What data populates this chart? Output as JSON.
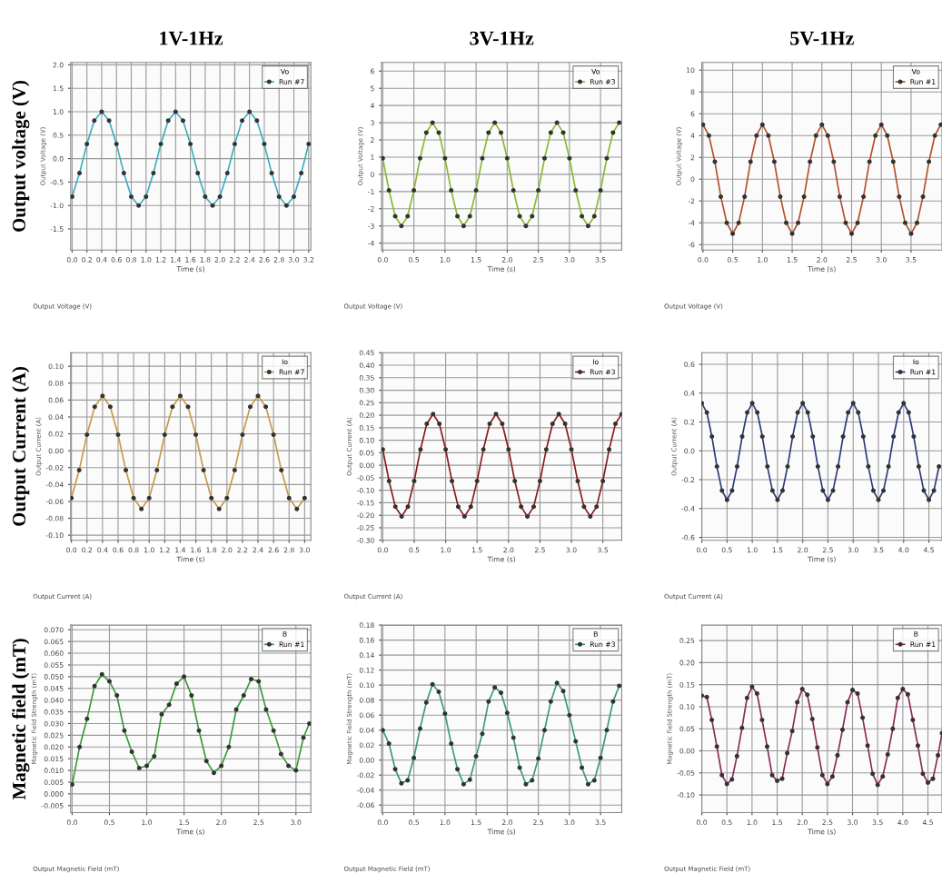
{
  "chart_data": [
    {
      "type": "line",
      "title": "1V-1Hz",
      "xlabel": "Time (s)",
      "ylabel": "Output Voltage (V)",
      "legend_title": "Vo",
      "legend": "top right",
      "grid": true,
      "marker": "circle",
      "line_style": "solid",
      "annotations": [
        "Output Voltage (V)",
        "Output voltage (V)"
      ],
      "xlim": [
        -0.02,
        3.23
      ],
      "ylim": [
        -1.95,
        2.05
      ],
      "xticks": [
        {
          "value": 0,
          "label": "0.0"
        },
        0.2,
        0.4,
        0.6,
        0.8,
        {
          "value": 1,
          "label": "1.0"
        },
        1.2,
        1.4,
        1.6,
        1.8,
        {
          "value": 2,
          "label": "2.0"
        },
        2.2,
        2.4,
        2.6,
        2.8,
        {
          "value": 3,
          "label": "3.0"
        },
        3.2
      ],
      "yticks": [
        -1.5,
        {
          "value": -1,
          "label": "-1.0"
        },
        -0.5,
        {
          "value": 0,
          "label": "0.0"
        },
        0.5,
        {
          "value": 1,
          "label": "1.0"
        },
        1.5,
        {
          "value": 2,
          "label": "2.0"
        }
      ],
      "series": [
        {
          "name": "Run #7",
          "color": "#3aafc0",
          "x": [
            0.0,
            0.1,
            0.2,
            0.3,
            0.4,
            0.5,
            0.6,
            0.7,
            0.8,
            0.9,
            1.0,
            1.1,
            1.2,
            1.3,
            1.4,
            1.5,
            1.6,
            1.7,
            1.8,
            1.9,
            2.0,
            2.1,
            2.2,
            2.3,
            2.4,
            2.5,
            2.6,
            2.7,
            2.8,
            2.9,
            3.0,
            3.1,
            3.2
          ],
          "values": [
            -0.81,
            -0.31,
            0.31,
            0.81,
            1.0,
            0.81,
            0.31,
            -0.31,
            -0.81,
            -1.0,
            -0.81,
            -0.31,
            0.31,
            0.81,
            1.0,
            0.81,
            0.31,
            -0.31,
            -0.81,
            -1.0,
            -0.81,
            -0.31,
            0.31,
            0.81,
            1.0,
            0.81,
            0.31,
            -0.31,
            -0.81,
            -1.0,
            -0.81,
            -0.31,
            0.31
          ]
        }
      ]
    },
    {
      "type": "line",
      "title": "3V-1Hz",
      "xlabel": "Time (s)",
      "ylabel": "Output Voltage (V)",
      "legend_title": "Vo",
      "legend": "top right",
      "grid": true,
      "marker": "circle",
      "line_style": "solid",
      "annotations": [
        "Output Voltage (V)"
      ],
      "xlim": [
        -0.02,
        3.84
      ],
      "ylim": [
        -4.4,
        6.5
      ],
      "xticks": [
        {
          "value": 0,
          "label": "0.0"
        },
        0.5,
        {
          "value": 1,
          "label": "1.0"
        },
        1.5,
        {
          "value": 2,
          "label": "2.0"
        },
        2.5,
        {
          "value": 3,
          "label": "3.0"
        },
        3.5
      ],
      "yticks": [
        -4,
        -3,
        -2,
        -1,
        0,
        1,
        2,
        3,
        4,
        5,
        6
      ],
      "series": [
        {
          "name": "Run #3",
          "color": "#8ab832",
          "x": [
            0.0,
            0.1,
            0.2,
            0.3,
            0.4,
            0.5,
            0.6,
            0.7,
            0.8,
            0.9,
            1.0,
            1.1,
            1.2,
            1.3,
            1.4,
            1.5,
            1.6,
            1.7,
            1.8,
            1.9,
            2.0,
            2.1,
            2.2,
            2.3,
            2.4,
            2.5,
            2.6,
            2.7,
            2.8,
            2.9,
            3.0,
            3.1,
            3.2,
            3.3,
            3.4,
            3.5,
            3.6,
            3.7,
            3.8
          ],
          "values": [
            0.93,
            -0.93,
            -2.43,
            -3,
            -2.43,
            -0.93,
            0.93,
            2.43,
            3,
            2.43,
            0.93,
            -0.93,
            -2.43,
            -3,
            -2.43,
            -0.93,
            0.93,
            2.43,
            3,
            2.43,
            0.93,
            -0.93,
            -2.43,
            -3,
            -2.43,
            -0.93,
            0.93,
            2.43,
            3,
            2.43,
            0.93,
            -0.93,
            -2.43,
            -3,
            -2.43,
            -0.93,
            0.93,
            2.43,
            3
          ]
        }
      ]
    },
    {
      "type": "line",
      "title": "5V-1Hz",
      "xlabel": "Time (s)",
      "ylabel": "Output Voltage (V)",
      "legend_title": "Vo",
      "legend": "top right",
      "grid": true,
      "marker": "circle",
      "line_style": "solid",
      "annotations": [
        "Output Voltage (V)"
      ],
      "xlim": [
        -0.02,
        4.02
      ],
      "ylim": [
        -6.5,
        10.7
      ],
      "xticks": [
        {
          "value": 0,
          "label": "0.0"
        },
        0.5,
        {
          "value": 1,
          "label": "1.0"
        },
        1.5,
        {
          "value": 2,
          "label": "2.0"
        },
        2.5,
        {
          "value": 3,
          "label": "3.0"
        },
        3.5
      ],
      "yticks": [
        -6,
        -4,
        -2,
        0,
        2,
        4,
        6,
        8,
        10
      ],
      "series": [
        {
          "name": "Run #1",
          "color": "#b5502a",
          "x": [
            0.0,
            0.1,
            0.2,
            0.3,
            0.4,
            0.5,
            0.6,
            0.7,
            0.8,
            0.9,
            1.0,
            1.1,
            1.2,
            1.3,
            1.4,
            1.5,
            1.6,
            1.7,
            1.8,
            1.9,
            2.0,
            2.1,
            2.2,
            2.3,
            2.4,
            2.5,
            2.6,
            2.7,
            2.8,
            2.9,
            3.0,
            3.1,
            3.2,
            3.3,
            3.4,
            3.5,
            3.6,
            3.7,
            3.8,
            3.9,
            4.0
          ],
          "values": [
            5,
            4,
            1.6,
            -1.6,
            -4,
            -5,
            -4,
            -1.6,
            1.6,
            4,
            5,
            4,
            1.6,
            -1.6,
            -4,
            -5,
            -4,
            -1.6,
            1.6,
            4,
            5,
            4,
            1.6,
            -1.6,
            -4,
            -5,
            -4,
            -1.6,
            1.6,
            4,
            5,
            4,
            1.6,
            -1.6,
            -4,
            -5,
            -4,
            -1.6,
            1.6,
            4,
            5
          ]
        }
      ]
    },
    {
      "type": "line",
      "xlabel": "Time (s)",
      "ylabel": "Output Current (A)",
      "legend_title": "Io",
      "legend": "top right",
      "grid": true,
      "marker": "circle",
      "line_style": "solid",
      "annotations": [
        "Output Current (A)",
        "Output Current (A)"
      ],
      "xlim": [
        -0.01,
        3.08
      ],
      "ylim": [
        -0.106,
        0.116
      ],
      "xticks": [
        {
          "value": 0,
          "label": "0.0"
        },
        0.2,
        0.4,
        0.6,
        0.8,
        {
          "value": 1,
          "label": "1.0"
        },
        1.2,
        1.4,
        1.6,
        1.8,
        {
          "value": 2,
          "label": "2.0"
        },
        2.2,
        2.4,
        2.6,
        2.8,
        {
          "value": 3,
          "label": "3.0"
        }
      ],
      "yticks": [
        {
          "value": -0.1,
          "label": "-0.10"
        },
        {
          "value": -0.08,
          "label": "-0.08"
        },
        {
          "value": -0.06,
          "label": "-0.06"
        },
        {
          "value": -0.04,
          "label": "-0.04"
        },
        {
          "value": -0.02,
          "label": "-0.02"
        },
        {
          "value": 0.0,
          "label": "0.00"
        },
        {
          "value": 0.02,
          "label": "0.02"
        },
        {
          "value": 0.04,
          "label": "0.04"
        },
        {
          "value": 0.06,
          "label": "0.06"
        },
        {
          "value": 0.08,
          "label": "0.08"
        },
        {
          "value": 0.1,
          "label": "0.10"
        }
      ],
      "series": [
        {
          "name": "Run #7",
          "color": "#c79a4a",
          "x": [
            0.0,
            0.1,
            0.2,
            0.3,
            0.4,
            0.5,
            0.6,
            0.7,
            0.8,
            0.9,
            1.0,
            1.1,
            1.2,
            1.3,
            1.4,
            1.5,
            1.6,
            1.7,
            1.8,
            1.9,
            2.0,
            2.1,
            2.2,
            2.3,
            2.4,
            2.5,
            2.6,
            2.7,
            2.8,
            2.9,
            3.0
          ],
          "values": [
            -0.056,
            -0.023,
            0.019,
            0.052,
            0.065,
            0.052,
            0.019,
            -0.023,
            -0.056,
            -0.069,
            -0.056,
            -0.023,
            0.019,
            0.052,
            0.065,
            0.052,
            0.019,
            -0.023,
            -0.056,
            -0.069,
            -0.056,
            -0.023,
            0.019,
            0.052,
            0.065,
            0.052,
            0.019,
            -0.023,
            -0.056,
            -0.069,
            -0.056
          ]
        }
      ]
    },
    {
      "type": "line",
      "xlabel": "Time (s)",
      "ylabel": "Output Current (A)",
      "legend_title": "Io",
      "legend": "top right",
      "grid": true,
      "marker": "circle",
      "line_style": "solid",
      "annotations": [
        "Output Current (A)"
      ],
      "xlim": [
        -0.02,
        3.8
      ],
      "ylim": [
        -0.3,
        0.45
      ],
      "xticks": [
        {
          "value": 0,
          "label": "0.0"
        },
        0.5,
        {
          "value": 1,
          "label": "1.0"
        },
        1.5,
        {
          "value": 2,
          "label": "2.0"
        },
        2.5,
        {
          "value": 3,
          "label": "3.0"
        },
        3.5
      ],
      "yticks": [
        {
          "value": -0.3,
          "label": "-0.30"
        },
        -0.25,
        {
          "value": -0.2,
          "label": "-0.20"
        },
        -0.15,
        {
          "value": -0.1,
          "label": "-0.10"
        },
        -0.05,
        {
          "value": 0.0,
          "label": "0.00"
        },
        0.05,
        {
          "value": 0.1,
          "label": "0.10"
        },
        0.15,
        {
          "value": 0.2,
          "label": "0.20"
        },
        0.25,
        {
          "value": 0.3,
          "label": "0.30"
        },
        0.35,
        {
          "value": 0.4,
          "label": "0.40"
        },
        0.45
      ],
      "series": [
        {
          "name": "Run #3",
          "color": "#8b1a1a",
          "x": [
            0.0,
            0.1,
            0.2,
            0.3,
            0.4,
            0.5,
            0.6,
            0.7,
            0.8,
            0.9,
            1.0,
            1.1,
            1.2,
            1.3,
            1.4,
            1.5,
            1.6,
            1.7,
            1.8,
            1.9,
            2.0,
            2.1,
            2.2,
            2.3,
            2.4,
            2.5,
            2.6,
            2.7,
            2.8,
            2.9,
            3.0,
            3.1,
            3.2,
            3.3,
            3.4,
            3.5,
            3.6,
            3.7,
            3.8
          ],
          "values": [
            0.063,
            -0.063,
            -0.166,
            -0.205,
            -0.166,
            -0.063,
            0.063,
            0.166,
            0.205,
            0.166,
            0.063,
            -0.063,
            -0.166,
            -0.205,
            -0.166,
            -0.063,
            0.063,
            0.166,
            0.205,
            0.166,
            0.063,
            -0.063,
            -0.166,
            -0.205,
            -0.166,
            -0.063,
            0.063,
            0.166,
            0.205,
            0.166,
            0.063,
            -0.063,
            -0.166,
            -0.205,
            -0.166,
            -0.063,
            0.063,
            0.166,
            0.205
          ]
        }
      ]
    },
    {
      "type": "line",
      "xlabel": "Time (s)",
      "ylabel": "Output Current (A)",
      "legend_title": "Io",
      "legend": "top right",
      "grid": true,
      "marker": "circle",
      "line_style": "solid",
      "annotations": [
        "Output Current (A)"
      ],
      "xlim": [
        0.0,
        4.76
      ],
      "ylim": [
        -0.62,
        0.68
      ],
      "xticks": [
        {
          "value": 0,
          "label": "0.0"
        },
        0.5,
        {
          "value": 1,
          "label": "1.0"
        },
        1.5,
        {
          "value": 2,
          "label": "2.0"
        },
        2.5,
        {
          "value": 3,
          "label": "3.0"
        },
        3.5,
        {
          "value": 4,
          "label": "4.0"
        },
        4.5
      ],
      "yticks": [
        -0.6,
        -0.4,
        -0.2,
        {
          "value": 0,
          "label": "0.0"
        },
        0.2,
        0.4,
        0.6
      ],
      "series": [
        {
          "name": "Run #1",
          "color": "#2a3a7a",
          "x": [
            0.0,
            0.1,
            0.2,
            0.3,
            0.4,
            0.5,
            0.6,
            0.7,
            0.8,
            0.9,
            1.0,
            1.1,
            1.2,
            1.3,
            1.4,
            1.5,
            1.6,
            1.7,
            1.8,
            1.9,
            2.0,
            2.1,
            2.2,
            2.3,
            2.4,
            2.5,
            2.6,
            2.7,
            2.8,
            2.9,
            3.0,
            3.1,
            3.2,
            3.3,
            3.4,
            3.5,
            3.6,
            3.7,
            3.8,
            3.9,
            4.0,
            4.1,
            4.2,
            4.3,
            4.4,
            4.5,
            4.6,
            4.7
          ],
          "values": [
            0.33,
            0.266,
            0.099,
            -0.109,
            -0.276,
            -0.34,
            -0.276,
            -0.109,
            0.099,
            0.266,
            0.33,
            0.266,
            0.099,
            -0.109,
            -0.276,
            -0.34,
            -0.276,
            -0.109,
            0.099,
            0.266,
            0.33,
            0.266,
            0.099,
            -0.109,
            -0.276,
            -0.34,
            -0.276,
            -0.109,
            0.099,
            0.266,
            0.33,
            0.266,
            0.099,
            -0.109,
            -0.276,
            -0.34,
            -0.276,
            -0.109,
            0.099,
            0.266,
            0.33,
            0.266,
            0.099,
            -0.109,
            -0.276,
            -0.34,
            -0.276,
            -0.109
          ]
        }
      ]
    },
    {
      "type": "line",
      "xlabel": "Time (s)",
      "ylabel": "Magnetic Field Strength (mT)",
      "legend_title": "B",
      "legend": "top right",
      "grid": true,
      "marker": "circle",
      "line_style": "solid",
      "annotations": [
        "Output Magnetic Field (mT)",
        "Magnetic field (mT)"
      ],
      "xlim": [
        -0.02,
        3.2
      ],
      "ylim": [
        -0.008,
        0.072
      ],
      "xticks": [
        {
          "value": 0,
          "label": "0.0"
        },
        0.5,
        {
          "value": 1,
          "label": "1.0"
        },
        1.5,
        {
          "value": 2,
          "label": "2.0"
        },
        2.5,
        {
          "value": 3,
          "label": "3.0"
        }
      ],
      "yticks": [
        {
          "value": -0.005,
          "label": "-0.005"
        },
        {
          "value": 0.0,
          "label": "0.000"
        },
        {
          "value": 0.005,
          "label": "0.005"
        },
        {
          "value": 0.01,
          "label": "0.010"
        },
        {
          "value": 0.015,
          "label": "0.015"
        },
        {
          "value": 0.02,
          "label": "0.020"
        },
        {
          "value": 0.025,
          "label": "0.025"
        },
        {
          "value": 0.03,
          "label": "0.030"
        },
        {
          "value": 0.035,
          "label": "0.035"
        },
        {
          "value": 0.04,
          "label": "0.040"
        },
        {
          "value": 0.045,
          "label": "0.045"
        },
        {
          "value": 0.05,
          "label": "0.050"
        },
        {
          "value": 0.055,
          "label": "0.055"
        },
        {
          "value": 0.06,
          "label": "0.060"
        },
        {
          "value": 0.065,
          "label": "0.065"
        },
        {
          "value": 0.07,
          "label": "0.070"
        }
      ],
      "series": [
        {
          "name": "Run #1",
          "color": "#3a9a3a",
          "x": [
            0.0,
            0.1,
            0.2,
            0.3,
            0.4,
            0.5,
            0.6,
            0.7,
            0.8,
            0.9,
            1.0,
            1.1,
            1.2,
            1.3,
            1.4,
            1.5,
            1.6,
            1.7,
            1.8,
            1.9,
            2.0,
            2.1,
            2.2,
            2.3,
            2.4,
            2.5,
            2.6,
            2.7,
            2.8,
            2.9,
            3.0,
            3.1,
            3.18
          ],
          "values": [
            0.004,
            0.02,
            0.032,
            0.046,
            0.051,
            0.048,
            0.042,
            0.027,
            0.018,
            0.011,
            0.012,
            0.016,
            0.034,
            0.038,
            0.047,
            0.05,
            0.042,
            0.027,
            0.014,
            0.009,
            0.012,
            0.02,
            0.036,
            0.042,
            0.049,
            0.048,
            0.036,
            0.027,
            0.017,
            0.012,
            0.01,
            0.024,
            0.03
          ]
        }
      ]
    },
    {
      "type": "line",
      "xlabel": "Time (s)",
      "ylabel": "Magnetic Field Strength (mT)",
      "legend_title": "B",
      "legend": "top right",
      "grid": true,
      "marker": "circle",
      "line_style": "solid",
      "annotations": [
        "Output Magnetic Field (mT)"
      ],
      "xlim": [
        -0.02,
        3.84
      ],
      "ylim": [
        -0.07,
        0.18
      ],
      "xticks": [
        {
          "value": 0,
          "label": "0.0"
        },
        0.5,
        {
          "value": 1,
          "label": "1.0"
        },
        1.5,
        {
          "value": 2,
          "label": "2.0"
        },
        2.5,
        {
          "value": 3,
          "label": "3.0"
        },
        3.5
      ],
      "yticks": [
        -0.06,
        -0.04,
        -0.02,
        {
          "value": 0.0,
          "label": "0.00"
        },
        0.02,
        0.04,
        0.06,
        0.08,
        {
          "value": 0.1,
          "label": "0.10"
        },
        0.12,
        0.14,
        0.16,
        0.18
      ],
      "series": [
        {
          "name": "Run #3",
          "color": "#3a9a7a",
          "x": [
            0.0,
            0.1,
            0.2,
            0.3,
            0.4,
            0.5,
            0.6,
            0.7,
            0.8,
            0.9,
            1.0,
            1.1,
            1.2,
            1.3,
            1.4,
            1.5,
            1.6,
            1.7,
            1.8,
            1.9,
            2.0,
            2.1,
            2.2,
            2.3,
            2.4,
            2.5,
            2.6,
            2.7,
            2.8,
            2.9,
            3.0,
            3.1,
            3.2,
            3.3,
            3.4,
            3.5,
            3.6,
            3.7,
            3.8
          ],
          "values": [
            0.04,
            0.022,
            -0.012,
            -0.031,
            -0.027,
            0.003,
            0.042,
            0.077,
            0.101,
            0.091,
            0.062,
            0.022,
            -0.012,
            -0.032,
            -0.026,
            0.005,
            0.035,
            0.078,
            0.097,
            0.09,
            0.063,
            0.03,
            -0.01,
            -0.032,
            -0.027,
            0.002,
            0.04,
            0.078,
            0.103,
            0.092,
            0.06,
            0.025,
            -0.01,
            -0.032,
            -0.027,
            0.003,
            0.04,
            0.078,
            0.099
          ]
        }
      ]
    },
    {
      "type": "line",
      "xlabel": "Time (s)",
      "ylabel": "Magnetic Field Strength (mT)",
      "legend_title": "B",
      "legend": "top right",
      "grid": true,
      "marker": "circle",
      "line_style": "solid",
      "annotations": [
        "Output Magnetic Field (mT)"
      ],
      "xlim": [
        0.0,
        4.78
      ],
      "ylim": [
        -0.14,
        0.285
      ],
      "xticks": [
        {
          "value": 0,
          "label": "0.0"
        },
        0.5,
        {
          "value": 1,
          "label": "1.0"
        },
        1.5,
        {
          "value": 2,
          "label": "2.0"
        },
        2.5,
        {
          "value": 3,
          "label": "3.0"
        },
        3.5,
        {
          "value": 4,
          "label": "4.0"
        },
        4.5
      ],
      "yticks": [
        {
          "value": -0.1,
          "label": "-0.10"
        },
        -0.05,
        {
          "value": 0.0,
          "label": "0.00"
        },
        0.05,
        {
          "value": 0.1,
          "label": "0.10"
        },
        0.15,
        {
          "value": 0.2,
          "label": "0.20"
        },
        0.25
      ],
      "series": [
        {
          "name": "Run #1",
          "color": "#8a2a5a",
          "x": [
            0.0,
            0.1,
            0.2,
            0.3,
            0.4,
            0.5,
            0.6,
            0.7,
            0.8,
            0.9,
            1.0,
            1.1,
            1.2,
            1.3,
            1.4,
            1.5,
            1.6,
            1.7,
            1.8,
            1.9,
            2.0,
            2.1,
            2.2,
            2.3,
            2.4,
            2.5,
            2.6,
            2.7,
            2.8,
            2.9,
            3.0,
            3.1,
            3.2,
            3.3,
            3.4,
            3.5,
            3.6,
            3.7,
            3.8,
            3.9,
            4.0,
            4.1,
            4.2,
            4.3,
            4.4,
            4.5,
            4.6,
            4.7,
            4.78
          ],
          "values": [
            0.125,
            0.122,
            0.07,
            0.01,
            -0.055,
            -0.075,
            -0.065,
            -0.012,
            0.052,
            0.12,
            0.145,
            0.13,
            0.07,
            0.01,
            -0.055,
            -0.068,
            -0.063,
            -0.005,
            0.045,
            0.11,
            0.14,
            0.127,
            0.072,
            0.008,
            -0.055,
            -0.075,
            -0.058,
            -0.01,
            0.048,
            0.11,
            0.138,
            0.13,
            0.075,
            0.012,
            -0.052,
            -0.077,
            -0.058,
            -0.008,
            0.05,
            0.12,
            0.14,
            0.128,
            0.07,
            0.012,
            -0.052,
            -0.072,
            -0.063,
            -0.01,
            0.04
          ]
        }
      ]
    }
  ]
}
